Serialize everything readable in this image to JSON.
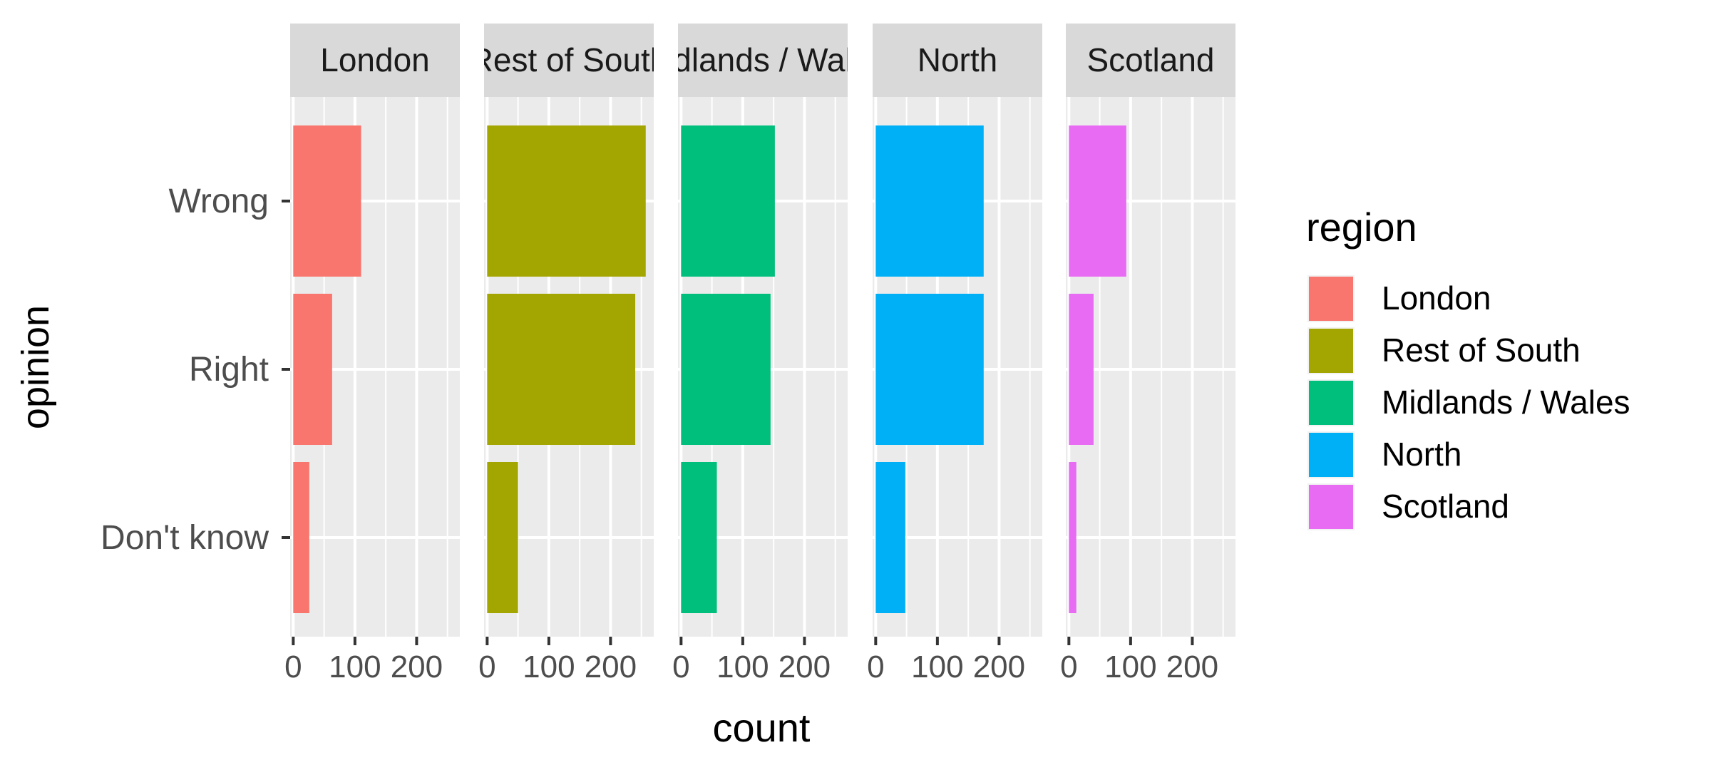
{
  "chart_data": {
    "type": "bar",
    "orientation": "horizontal",
    "facet_variable": "region",
    "categories": [
      "Wrong",
      "Right",
      "Don't know"
    ],
    "series": [
      {
        "name": "London",
        "color": "#F8766D",
        "values": [
          110,
          63,
          26
        ]
      },
      {
        "name": "Rest of South",
        "color": "#A3A500",
        "values": [
          257,
          240,
          50
        ]
      },
      {
        "name": "Midlands / Wales",
        "color": "#00BF7D",
        "values": [
          152,
          145,
          58
        ]
      },
      {
        "name": "North",
        "color": "#00B0F6",
        "values": [
          175,
          175,
          48
        ]
      },
      {
        "name": "Scotland",
        "color": "#E76BF3",
        "values": [
          93,
          40,
          12
        ]
      }
    ],
    "xlabel": "count",
    "ylabel": "opinion",
    "xlim": [
      -5,
      270
    ],
    "x_ticks": [
      0,
      100,
      200
    ],
    "grid": true,
    "legend": {
      "title": "region",
      "position": "right"
    }
  }
}
